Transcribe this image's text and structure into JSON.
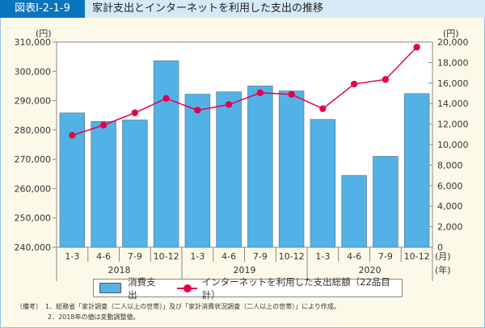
{
  "header": {
    "figure_no": "図表Ⅰ-2-1-9",
    "title": "家計支出とインターネットを利用した支出の推移"
  },
  "chart_data": {
    "type": "bar+line",
    "categories": [
      "1-3",
      "4-6",
      "7-9",
      "10-12",
      "1-3",
      "4-6",
      "7-9",
      "10-12",
      "1-3",
      "4-6",
      "7-9",
      "10-12"
    ],
    "years": [
      "2018",
      "2019",
      "2020"
    ],
    "x_unit_month": "(月)",
    "x_unit_year": "(年)",
    "left_axis": {
      "unit": "(円)",
      "ylim": [
        240000,
        310000
      ],
      "ticks": [
        "240,000",
        "250,000",
        "260,000",
        "270,000",
        "280,000",
        "290,000",
        "300,000",
        "310,000"
      ]
    },
    "right_axis": {
      "unit": "(円)",
      "ylim": [
        0,
        20000
      ],
      "ticks": [
        "0",
        "2,000",
        "4,000",
        "6,000",
        "8,000",
        "10,000",
        "12,000",
        "14,000",
        "16,000",
        "18,000",
        "20,000"
      ]
    },
    "series": [
      {
        "name": "消費支出",
        "type": "bar",
        "axis": "left",
        "color": "#52b2e5",
        "values": [
          285800,
          282900,
          283400,
          303600,
          292200,
          293000,
          295000,
          293300,
          283600,
          264500,
          271000,
          292400
        ]
      },
      {
        "name": "インターネットを利用した支出総額（22品目計）",
        "type": "line",
        "axis": "right",
        "color": "#e5004f",
        "values": [
          10900,
          11900,
          13100,
          14500,
          13350,
          13900,
          15050,
          14900,
          13500,
          15900,
          16350,
          19500
        ]
      }
    ],
    "legend": "bottom"
  },
  "notes": [
    "（備考）　1．総務省「家計調査（二人以上の世帯）」及び「家計消費状況調査（二人以上の世帯）」により作成。",
    "2．2018年の値は変動調整値。"
  ]
}
